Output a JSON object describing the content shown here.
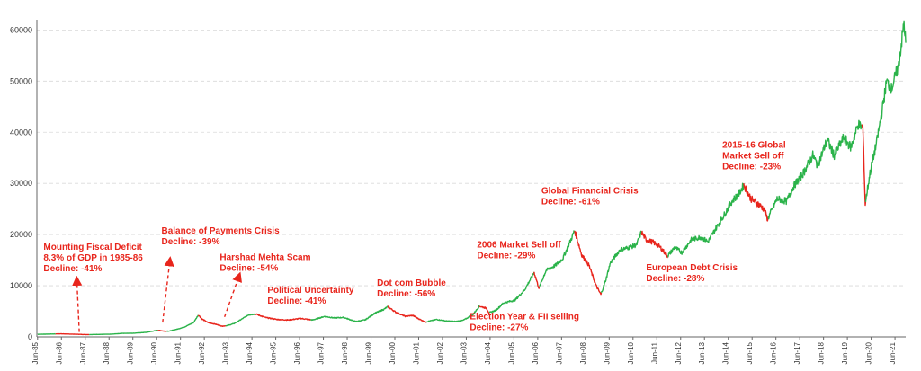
{
  "chart_data": {
    "type": "line",
    "title": "",
    "xlabel": "",
    "ylabel": "",
    "ylim": [
      0,
      62000
    ],
    "yticks": [
      0,
      10000,
      20000,
      30000,
      40000,
      50000,
      60000
    ],
    "grid": true,
    "x_tick_labels": [
      "Jun-85",
      "Jun-86",
      "Jun-87",
      "Jun-88",
      "Jun-89",
      "Jun-90",
      "Jun-91",
      "Jun-92",
      "Jun-93",
      "Jun-94",
      "Jun-95",
      "Jun-96",
      "Jun-97",
      "Jun-98",
      "Jun-99",
      "Jun-00",
      "Jun-01",
      "Jun-02",
      "Jun-03",
      "Jun-04",
      "Jun-05",
      "Jun-06",
      "Jun-07",
      "Jun-08",
      "Jun-09",
      "Jun-10",
      "Jun-11",
      "Jun-12",
      "Jun-13",
      "Jun-14",
      "Jun-15",
      "Jun-16",
      "Jun-17",
      "Jun-18",
      "Jun-19",
      "Jun-20",
      "Jun-21"
    ],
    "colors": {
      "rise": "#2bb34a",
      "decline": "#e8251c",
      "annotation": "#e8251c",
      "axis": "#666666"
    },
    "x_range": [
      1985.42,
      2021.9
    ],
    "series": [
      {
        "points": [
          [
            1985.45,
            500
          ],
          [
            1986.0,
            560
          ],
          [
            1986.4,
            600
          ],
          [
            1987.0,
            520
          ],
          [
            1987.5,
            450
          ],
          [
            1988.0,
            480
          ],
          [
            1988.5,
            520
          ],
          [
            1989.0,
            680
          ],
          [
            1989.5,
            720
          ],
          [
            1990.0,
            880
          ],
          [
            1990.5,
            1300
          ],
          [
            1990.8,
            1100
          ],
          [
            1991.0,
            1150
          ],
          [
            1991.3,
            1500
          ],
          [
            1991.6,
            1900
          ],
          [
            1992.0,
            2800
          ],
          [
            1992.2,
            4300
          ],
          [
            1992.35,
            3500
          ],
          [
            1992.6,
            2800
          ],
          [
            1992.9,
            2500
          ],
          [
            1993.2,
            2100
          ],
          [
            1993.4,
            2200
          ],
          [
            1993.7,
            2600
          ],
          [
            1994.0,
            3400
          ],
          [
            1994.3,
            4300
          ],
          [
            1994.6,
            4500
          ],
          [
            1995.0,
            3800
          ],
          [
            1995.5,
            3400
          ],
          [
            1996.0,
            3300
          ],
          [
            1996.5,
            3600
          ],
          [
            1997.0,
            3300
          ],
          [
            1997.5,
            4000
          ],
          [
            1997.9,
            3700
          ],
          [
            1998.3,
            3800
          ],
          [
            1998.8,
            3000
          ],
          [
            1999.2,
            3300
          ],
          [
            1999.6,
            4600
          ],
          [
            2000.0,
            5400
          ],
          [
            2000.15,
            5900
          ],
          [
            2000.5,
            4800
          ],
          [
            2000.9,
            4000
          ],
          [
            2001.2,
            4200
          ],
          [
            2001.5,
            3400
          ],
          [
            2001.75,
            2900
          ],
          [
            2002.2,
            3400
          ],
          [
            2002.6,
            3100
          ],
          [
            2003.0,
            3000
          ],
          [
            2003.3,
            3200
          ],
          [
            2003.7,
            4200
          ],
          [
            2004.0,
            6000
          ],
          [
            2004.3,
            5600
          ],
          [
            2004.4,
            4700
          ],
          [
            2004.7,
            5200
          ],
          [
            2005.0,
            6600
          ],
          [
            2005.5,
            7200
          ],
          [
            2005.9,
            9200
          ],
          [
            2006.3,
            12600
          ],
          [
            2006.5,
            9500
          ],
          [
            2006.8,
            13000
          ],
          [
            2007.2,
            14000
          ],
          [
            2007.5,
            15300
          ],
          [
            2007.8,
            18500
          ],
          [
            2008.0,
            20800
          ],
          [
            2008.3,
            16000
          ],
          [
            2008.6,
            14000
          ],
          [
            2008.9,
            10000
          ],
          [
            2009.1,
            8300
          ],
          [
            2009.3,
            11000
          ],
          [
            2009.5,
            14500
          ],
          [
            2009.9,
            17000
          ],
          [
            2010.3,
            17500
          ],
          [
            2010.6,
            18000
          ],
          [
            2010.8,
            20500
          ],
          [
            2011.0,
            19000
          ],
          [
            2011.3,
            18500
          ],
          [
            2011.6,
            17500
          ],
          [
            2011.9,
            15800
          ],
          [
            2012.2,
            17500
          ],
          [
            2012.5,
            16500
          ],
          [
            2012.9,
            19000
          ],
          [
            2013.3,
            19500
          ],
          [
            2013.6,
            18600
          ],
          [
            2013.9,
            21000
          ],
          [
            2014.3,
            24000
          ],
          [
            2014.6,
            26500
          ],
          [
            2014.9,
            28000
          ],
          [
            2015.1,
            29700
          ],
          [
            2015.4,
            27000
          ],
          [
            2015.7,
            26000
          ],
          [
            2015.95,
            25000
          ],
          [
            2016.1,
            23000
          ],
          [
            2016.5,
            27000
          ],
          [
            2016.9,
            26500
          ],
          [
            2017.2,
            29500
          ],
          [
            2017.6,
            32000
          ],
          [
            2018.0,
            35500
          ],
          [
            2018.2,
            33500
          ],
          [
            2018.6,
            38500
          ],
          [
            2018.9,
            35500
          ],
          [
            2019.3,
            39000
          ],
          [
            2019.6,
            37000
          ],
          [
            2019.9,
            41500
          ],
          [
            2020.1,
            41000
          ],
          [
            2020.2,
            26000
          ],
          [
            2020.4,
            32000
          ],
          [
            2020.7,
            38500
          ],
          [
            2020.9,
            44000
          ],
          [
            2021.1,
            50000
          ],
          [
            2021.3,
            48500
          ],
          [
            2021.6,
            53000
          ],
          [
            2021.75,
            58500
          ],
          [
            2021.83,
            61500
          ],
          [
            2021.9,
            57500
          ]
        ]
      }
    ],
    "decline_periods": [
      [
        1986.2,
        1987.6
      ],
      [
        1990.5,
        1990.85
      ],
      [
        1992.2,
        1993.35
      ],
      [
        1994.6,
        1996.9
      ],
      [
        2000.15,
        2001.75
      ],
      [
        2004.0,
        2004.4
      ],
      [
        2006.3,
        2006.5
      ],
      [
        2008.0,
        2009.1
      ],
      [
        2010.8,
        2011.9
      ],
      [
        2015.1,
        2016.1
      ],
      [
        2020.05,
        2020.2
      ]
    ],
    "annotations": [
      {
        "lines": [
          "Mounting Fiscal Deficit",
          "8.3% of GDP in 1985-86",
          "Decline: -41%"
        ],
        "x": 1985.7,
        "y": 17000,
        "arrow_from": [
          1987.2,
          950
        ],
        "arrow_to": [
          1987.1,
          11000
        ]
      },
      {
        "lines": [
          "Balance of Payments Crisis",
          "Decline: -39%"
        ],
        "x": 1990.65,
        "y": 20200,
        "arrow_from": [
          1990.7,
          2800
        ],
        "arrow_to": [
          1991.0,
          14800
        ]
      },
      {
        "lines": [
          "Harshad Mehta Scam",
          "Decline: -54%"
        ],
        "x": 1993.1,
        "y": 15000,
        "arrow_from": [
          1993.3,
          3900
        ],
        "arrow_to": [
          1993.9,
          11800
        ]
      },
      {
        "lines": [
          "Political Uncertainty",
          "Decline: -41%"
        ],
        "x": 1995.1,
        "y": 8600
      },
      {
        "lines": [
          "Dot com Bubble",
          "Decline: -56%"
        ],
        "x": 1999.7,
        "y": 10000
      },
      {
        "lines": [
          "Election Year & FII selling",
          "Decline: -27%"
        ],
        "x": 2003.6,
        "y": 3400
      },
      {
        "lines": [
          "2006  Market Sell off",
          "Decline: -29%"
        ],
        "x": 2003.9,
        "y": 17500
      },
      {
        "lines": [
          "Global Financial Crisis",
          "Decline: -61%"
        ],
        "x": 2006.6,
        "y": 28000
      },
      {
        "lines": [
          "European Debt Crisis",
          "Decline: -28%"
        ],
        "x": 2011.0,
        "y": 13000
      },
      {
        "lines": [
          "2015-16  Global",
          "Market Sell off",
          "Decline: -23%"
        ],
        "x": 2014.2,
        "y": 37000
      }
    ]
  }
}
